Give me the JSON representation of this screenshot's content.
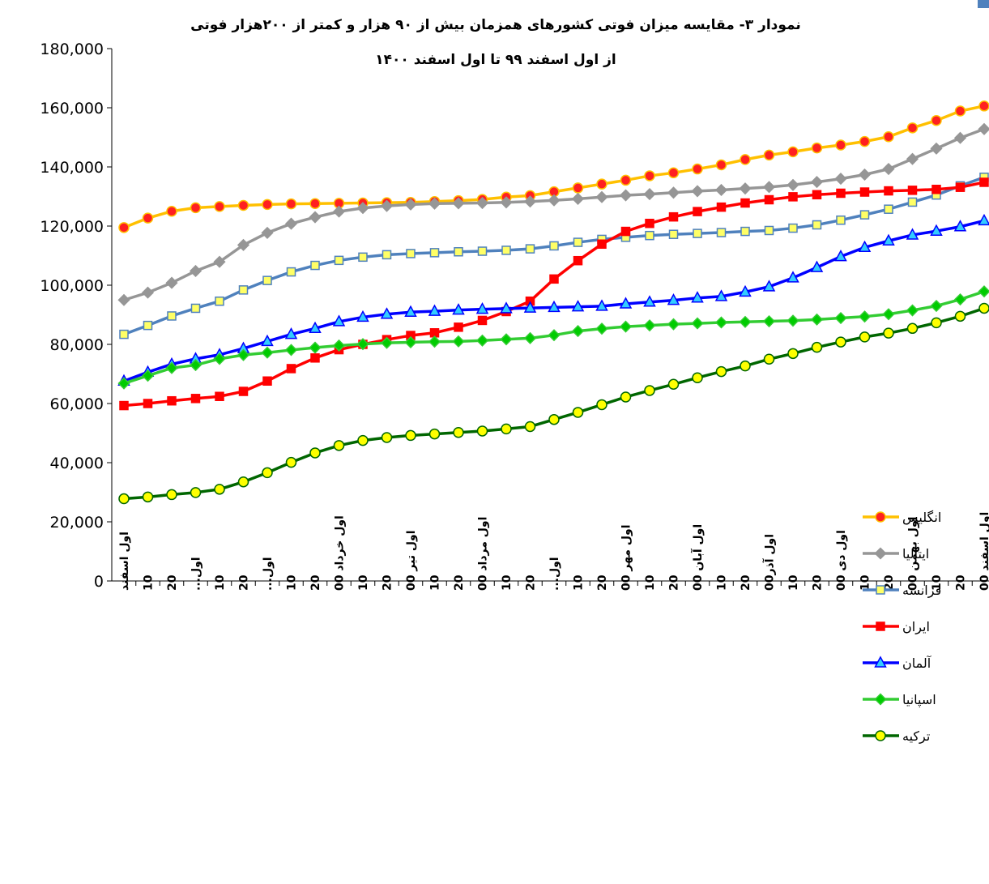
{
  "chart_data": {
    "type": "line",
    "title": "نمودار ۳- مقایسه میزان فوتی کشورهای همزمان  بیش از ۹۰ هزار و کمتر از ۲۰۰هزار فوتی",
    "subtitle": "از  اول اسفند ۹۹ تا  اول اسفند  ۱۴۰۰",
    "categories": [
      "اول اسفند",
      "10",
      "20",
      "اول...",
      "10",
      "20",
      "اول...",
      "10",
      "20",
      "اول خرداد 00",
      "10",
      "20",
      "اول تیر 00",
      "10",
      "20",
      "اول مرداد 00",
      "10",
      "20",
      "اول...",
      "10",
      "20",
      "اول مهر 00",
      "10",
      "20",
      "اول آبان 00",
      "10",
      "20",
      "اول آذر00",
      "10",
      "20",
      "اول دی 00",
      "10",
      "20",
      "اول بهمن 00",
      "10",
      "20",
      "اول اسفند 00"
    ],
    "ylim": [
      0,
      180000
    ],
    "yticks": [
      0,
      {
        "value": 20000,
        "label": "20,000"
      },
      {
        "value": 40000,
        "label": "40,000"
      },
      {
        "value": 60000,
        "label": "60,000"
      },
      {
        "value": 80000,
        "label": "80,000"
      },
      {
        "value": 100000,
        "label": "100,000"
      },
      {
        "value": 120000,
        "label": "120,000"
      },
      {
        "value": 140000,
        "label": "140,000"
      },
      {
        "value": 160000,
        "label": "160,000"
      },
      {
        "value": 180000,
        "label": "180,000"
      }
    ],
    "series": [
      {
        "name": "انگلیس",
        "color": "#FFC000",
        "marker": "circle",
        "marker_color": "#FF2020",
        "values": [
          119500,
          122700,
          125000,
          126200,
          126600,
          127000,
          127300,
          127500,
          127600,
          127700,
          127800,
          127900,
          128000,
          128300,
          128600,
          129000,
          129800,
          130300,
          131600,
          132900,
          134200,
          135500,
          137000,
          138000,
          139300,
          140700,
          142500,
          144000,
          145100,
          146400,
          147400,
          148600,
          150200,
          153200,
          155700,
          158900,
          160600
        ]
      },
      {
        "name": "ایتالیا",
        "color": "#969696",
        "marker": "diamond",
        "marker_color": "#969696",
        "values": [
          95000,
          97500,
          100800,
          104800,
          107900,
          113600,
          117700,
          120800,
          123000,
          124900,
          126100,
          126800,
          127300,
          127600,
          127700,
          127800,
          128000,
          128300,
          128700,
          129200,
          129800,
          130400,
          130800,
          131300,
          131800,
          132200,
          132700,
          133200,
          133900,
          134900,
          136000,
          137400,
          139300,
          142700,
          146200,
          149800,
          152800
        ]
      },
      {
        "name": "فرانسه",
        "color": "#4F81BD",
        "marker": "square",
        "marker_color": "#FFFF66",
        "values": [
          83400,
          86400,
          89600,
          92200,
          94600,
          98400,
          101600,
          104500,
          106700,
          108400,
          109500,
          110300,
          110700,
          111000,
          111300,
          111500,
          111800,
          112300,
          113300,
          114500,
          115500,
          116200,
          116800,
          117200,
          117500,
          117800,
          118200,
          118500,
          119300,
          120400,
          122000,
          123800,
          125700,
          128100,
          130500,
          133600,
          136500
        ]
      },
      {
        "name": "ایران",
        "color": "#FF0000",
        "marker": "square",
        "marker_color": "#FF0000",
        "values": [
          59300,
          60000,
          60900,
          61700,
          62400,
          64100,
          67600,
          71800,
          75400,
          78200,
          80000,
          81600,
          83000,
          83900,
          85800,
          88100,
          91100,
          94600,
          102100,
          108300,
          113900,
          118200,
          120900,
          123100,
          124900,
          126400,
          127800,
          128900,
          129900,
          130600,
          131100,
          131500,
          131900,
          132100,
          132400,
          133100,
          134800
        ]
      },
      {
        "name": "آلمان",
        "color": "#0000FF",
        "marker": "triangle",
        "marker_color": "#33CCFF",
        "values": [
          67600,
          70600,
          73300,
          75100,
          76500,
          78600,
          81000,
          83400,
          85400,
          87700,
          89200,
          90200,
          90900,
          91200,
          91600,
          91900,
          92100,
          92300,
          92500,
          92700,
          92900,
          93700,
          94300,
          94900,
          95700,
          96200,
          97700,
          99500,
          102500,
          106000,
          109700,
          112800,
          115000,
          117000,
          118300,
          119800,
          121800
        ]
      },
      {
        "name": "اسپانیا",
        "color": "#33CC33",
        "marker": "diamond",
        "marker_color": "#00CC00",
        "values": [
          66800,
          69400,
          72000,
          73000,
          75100,
          76400,
          77200,
          78100,
          78900,
          79600,
          80100,
          80500,
          80700,
          80900,
          81000,
          81300,
          81700,
          82100,
          83100,
          84500,
          85300,
          86000,
          86400,
          86800,
          87100,
          87400,
          87600,
          87800,
          88000,
          88400,
          88900,
          89400,
          90200,
          91500,
          93000,
          95200,
          97900
        ]
      },
      {
        "name": "ترکیه",
        "color": "#006600",
        "marker": "circle",
        "marker_color": "#FFFF00",
        "values": [
          27800,
          28400,
          29200,
          29900,
          31000,
          33500,
          36600,
          40100,
          43300,
          45800,
          47500,
          48500,
          49200,
          49700,
          50200,
          50700,
          51400,
          52200,
          54600,
          57000,
          59600,
          62200,
          64400,
          66500,
          68700,
          70800,
          72700,
          75000,
          76900,
          79000,
          80800,
          82500,
          83800,
          85400,
          87300,
          89500,
          92200
        ]
      }
    ]
  }
}
